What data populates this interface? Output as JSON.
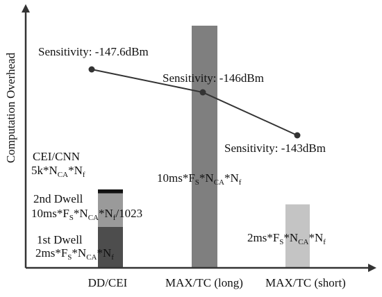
{
  "chart_data": {
    "type": "bar",
    "ylabel": "Computation Overhead",
    "categories": [
      "DD/CEI",
      "MAX/TC (long)",
      "MAX/TC (short)"
    ],
    "y_ticks": false,
    "colors": {
      "axis": "#333333",
      "cei_cnn": "#111111",
      "second_dwell": "#9a9a9a",
      "first_dwell": "#4d4d4d",
      "max_tc_long": "#7f7f7f",
      "max_tc_short": "#c4c4c4",
      "line": "#333333"
    },
    "dd_cei_stack": [
      {
        "segment": "1st Dwell",
        "formula": "2ms*F_S*N_CA*N_f",
        "relative_height": 0.52
      },
      {
        "segment": "2nd Dwell",
        "formula": "10ms*F_S*N_CA*N_f/1023",
        "relative_height": 0.43
      },
      {
        "segment": "CEI/CNN",
        "formula": "5k*N_CA*N_f",
        "relative_height": 0.05
      }
    ],
    "bars": [
      {
        "category": "MAX/TC (long)",
        "formula": "10ms*F_S*N_CA*N_f",
        "relative_height": 1.0
      },
      {
        "category": "MAX/TC (short)",
        "formula": "2ms*F_S*N_CA*N_f",
        "relative_height": 0.26
      },
      {
        "category": "DD/CEI",
        "formula": "total of stack",
        "relative_height": 0.33
      }
    ],
    "sensitivity_series": [
      {
        "category": "DD/CEI",
        "value": -147.6,
        "unit": "dBm",
        "label": "Sensitivity: -147.6dBm"
      },
      {
        "category": "MAX/TC (long)",
        "value": -146,
        "unit": "dBm",
        "label": "Sensitivity: -146dBm"
      },
      {
        "category": "MAX/TC (short)",
        "value": -143,
        "unit": "dBm",
        "label": "Sensitivity: -143dBm"
      }
    ]
  },
  "labels": {
    "cei_cnn_title": "CEI/CNN",
    "cei_cnn_formula": {
      "a": "5k*N",
      "b": "CA",
      "c": "*N",
      "d": "f"
    },
    "second_dwell_title": "2nd Dwell",
    "second_dwell_formula": {
      "a": "10ms*F",
      "b": "S",
      "c": "*N",
      "d": "CA",
      "e": "*N",
      "f": "f",
      "g": "/1023"
    },
    "first_dwell_title": "1st Dwell",
    "first_dwell_formula": {
      "a": "2ms*F",
      "b": "S",
      "c": "*N",
      "d": "CA",
      "e": "*N",
      "f": "f"
    },
    "long_formula": {
      "a": "10ms*F",
      "b": "S",
      "c": "*N",
      "d": "CA",
      "e": "*N",
      "f": "f"
    },
    "short_formula": {
      "a": "2ms*F",
      "b": "S",
      "c": "*N",
      "d": "CA",
      "e": "*N",
      "f": "f"
    }
  }
}
